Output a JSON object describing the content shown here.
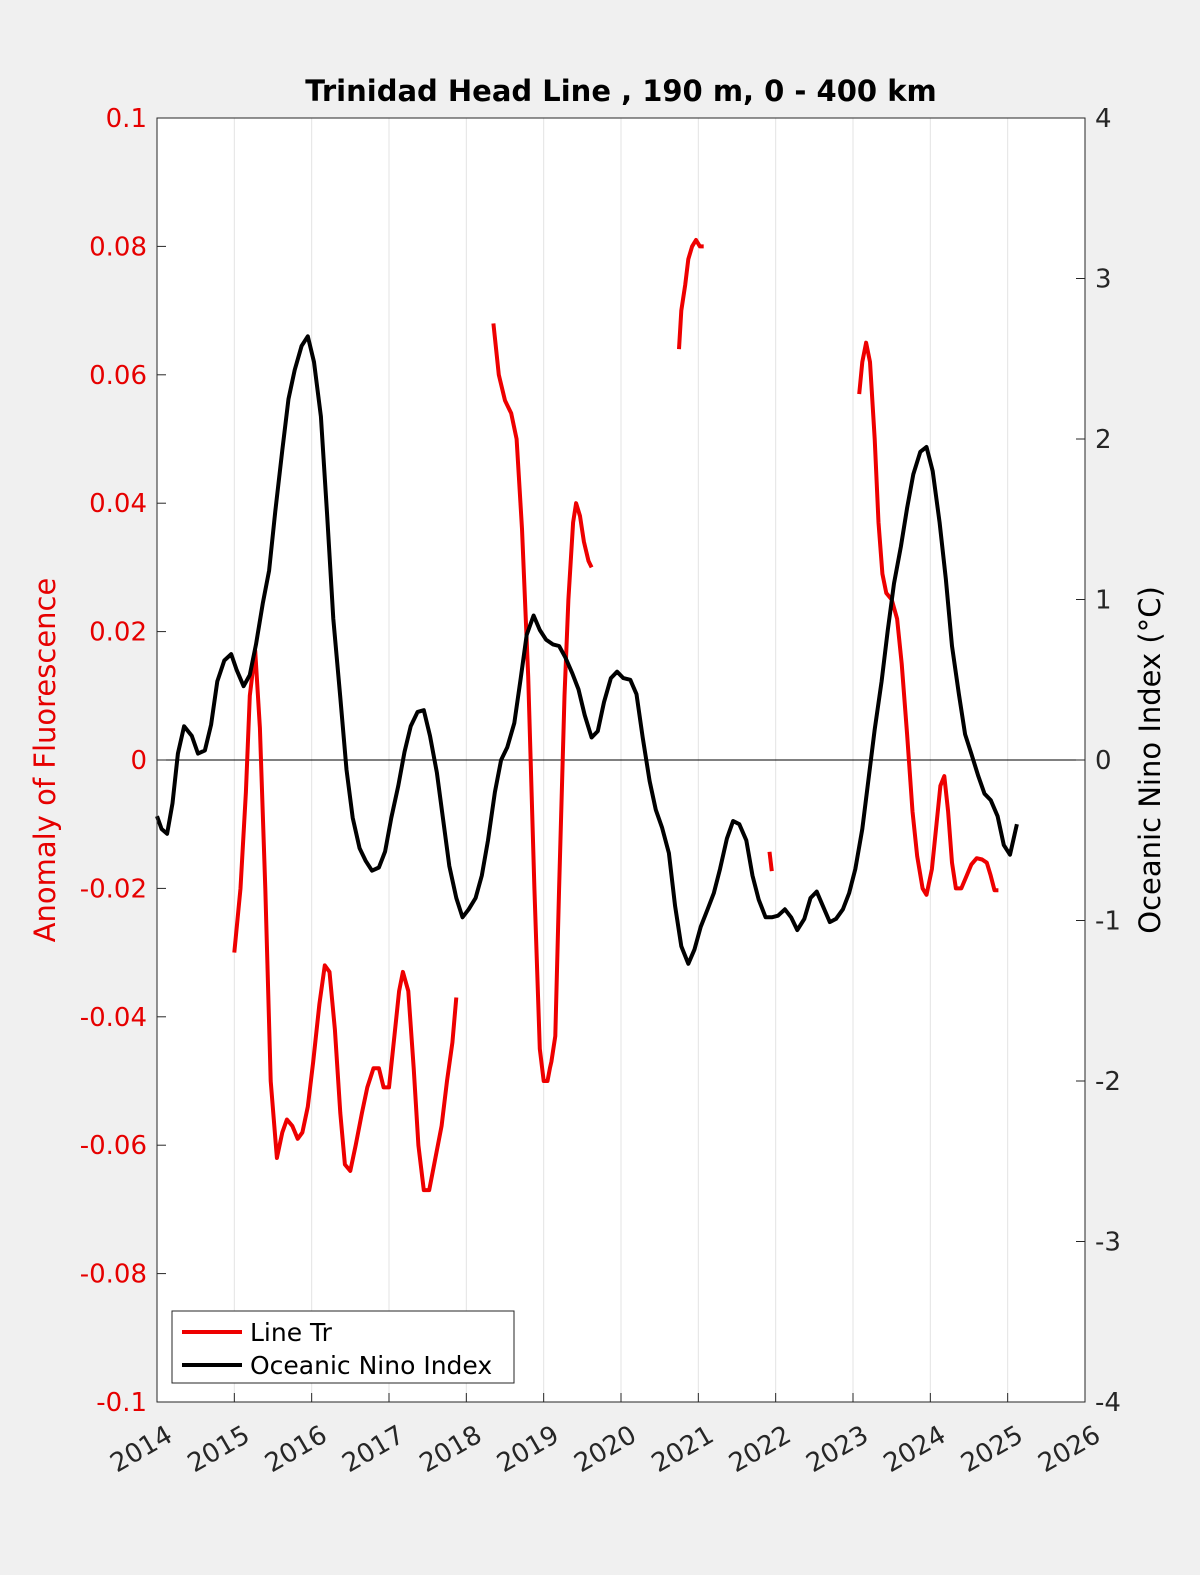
{
  "chart_data": {
    "type": "line",
    "title": "Trinidad Head Line , 190 m, 0 - 400 km",
    "xlabel": "",
    "ylabel_left": "Anomaly of Fluorescence",
    "ylabel_right": "Oceanic Nino Index (°C)",
    "xlim": [
      2014,
      2026
    ],
    "ylim_left": [
      -0.1,
      0.1
    ],
    "ylim_right": [
      -4,
      4
    ],
    "x_ticks": [
      "2014",
      "2015",
      "2016",
      "2017",
      "2018",
      "2019",
      "2020",
      "2021",
      "2022",
      "2023",
      "2024",
      "2025",
      "2026"
    ],
    "y_ticks_left": [
      "0.1",
      "0.08",
      "0.06",
      "0.04",
      "0.02",
      "0",
      "-0.02",
      "-0.04",
      "-0.06",
      "-0.08",
      "-0.1"
    ],
    "y_ticks_right": [
      "4",
      "3",
      "2",
      "1",
      "0",
      "-1",
      "-2",
      "-3",
      "-4"
    ],
    "grid": "vertical",
    "zero_line": true,
    "legend_position": "bottom-left",
    "colors": {
      "left_axis": "#e60000",
      "line_tr": "#ee0000",
      "oni": "#000000",
      "grid": "#e3e3e3",
      "background": "#f0f0f0"
    },
    "series": [
      {
        "name": "Line Tr",
        "axis": "left",
        "segments": [
          [
            [
              2015.0,
              -0.03
            ],
            [
              2015.08,
              -0.02
            ],
            [
              2015.15,
              -0.005
            ],
            [
              2015.2,
              0.01
            ],
            [
              2015.27,
              0.017
            ],
            [
              2015.33,
              0.005
            ],
            [
              2015.4,
              -0.02
            ],
            [
              2015.47,
              -0.05
            ],
            [
              2015.55,
              -0.062
            ],
            [
              2015.62,
              -0.058
            ],
            [
              2015.68,
              -0.056
            ],
            [
              2015.75,
              -0.057
            ],
            [
              2015.82,
              -0.059
            ],
            [
              2015.88,
              -0.058
            ],
            [
              2015.95,
              -0.054
            ],
            [
              2016.02,
              -0.047
            ],
            [
              2016.1,
              -0.038
            ],
            [
              2016.17,
              -0.032
            ],
            [
              2016.23,
              -0.033
            ],
            [
              2016.3,
              -0.042
            ],
            [
              2016.37,
              -0.055
            ],
            [
              2016.43,
              -0.063
            ],
            [
              2016.5,
              -0.064
            ],
            [
              2016.57,
              -0.06
            ],
            [
              2016.65,
              -0.055
            ],
            [
              2016.72,
              -0.051
            ],
            [
              2016.8,
              -0.048
            ],
            [
              2016.87,
              -0.048
            ],
            [
              2016.93,
              -0.051
            ],
            [
              2017.0,
              -0.051
            ],
            [
              2017.07,
              -0.043
            ],
            [
              2017.13,
              -0.036
            ],
            [
              2017.18,
              -0.033
            ],
            [
              2017.25,
              -0.036
            ],
            [
              2017.32,
              -0.048
            ],
            [
              2017.38,
              -0.06
            ],
            [
              2017.45,
              -0.067
            ],
            [
              2017.52,
              -0.067
            ],
            [
              2017.6,
              -0.062
            ],
            [
              2017.68,
              -0.057
            ],
            [
              2017.75,
              -0.05
            ],
            [
              2017.82,
              -0.044
            ],
            [
              2017.87,
              -0.037
            ]
          ],
          [
            [
              2018.35,
              0.068
            ],
            [
              2018.42,
              0.06
            ],
            [
              2018.5,
              0.056
            ],
            [
              2018.58,
              0.054
            ],
            [
              2018.65,
              0.05
            ],
            [
              2018.72,
              0.036
            ],
            [
              2018.8,
              0.013
            ],
            [
              2018.88,
              -0.02
            ],
            [
              2018.95,
              -0.045
            ],
            [
              2019.0,
              -0.05
            ],
            [
              2019.05,
              -0.05
            ],
            [
              2019.08,
              -0.048
            ],
            [
              2019.1,
              -0.047
            ],
            [
              2019.15,
              -0.043
            ],
            [
              2019.2,
              -0.02
            ],
            [
              2019.27,
              0.01
            ],
            [
              2019.32,
              0.025
            ],
            [
              2019.38,
              0.037
            ],
            [
              2019.42,
              0.04
            ],
            [
              2019.47,
              0.038
            ],
            [
              2019.52,
              0.034
            ],
            [
              2019.58,
              0.031
            ],
            [
              2019.62,
              0.03
            ]
          ],
          [
            [
              2020.75,
              0.064
            ],
            [
              2020.78,
              0.07
            ],
            [
              2020.83,
              0.074
            ],
            [
              2020.87,
              0.078
            ],
            [
              2020.92,
              0.08
            ],
            [
              2020.97,
              0.081
            ],
            [
              2021.02,
              0.08
            ],
            [
              2021.07,
              0.08
            ]
          ],
          [
            [
              2021.92,
              -0.0143
            ],
            [
              2021.95,
              -0.0173
            ]
          ],
          [
            [
              2023.08,
              0.057
            ],
            [
              2023.12,
              0.062
            ],
            [
              2023.17,
              0.065
            ],
            [
              2023.22,
              0.062
            ],
            [
              2023.28,
              0.05
            ],
            [
              2023.33,
              0.037
            ],
            [
              2023.38,
              0.029
            ],
            [
              2023.43,
              0.026
            ],
            [
              2023.5,
              0.025
            ],
            [
              2023.57,
              0.022
            ],
            [
              2023.63,
              0.015
            ],
            [
              2023.7,
              0.004
            ],
            [
              2023.77,
              -0.008
            ],
            [
              2023.83,
              -0.015
            ],
            [
              2023.9,
              -0.02
            ],
            [
              2023.95,
              -0.021
            ],
            [
              2024.02,
              -0.017
            ],
            [
              2024.08,
              -0.01
            ],
            [
              2024.13,
              -0.004
            ],
            [
              2024.18,
              -0.0025
            ],
            [
              2024.23,
              -0.008
            ],
            [
              2024.28,
              -0.016
            ],
            [
              2024.33,
              -0.02
            ],
            [
              2024.4,
              -0.02
            ],
            [
              2024.47,
              -0.018
            ],
            [
              2024.53,
              -0.0163
            ],
            [
              2024.6,
              -0.0153
            ],
            [
              2024.67,
              -0.0155
            ],
            [
              2024.73,
              -0.016
            ],
            [
              2024.78,
              -0.018
            ],
            [
              2024.83,
              -0.0203
            ],
            [
              2024.88,
              -0.0203
            ]
          ]
        ]
      },
      {
        "name": "Oceanic Nino Index",
        "axis": "right",
        "segments": [
          [
            [
              2014.0,
              -0.35
            ],
            [
              2014.06,
              -0.43
            ],
            [
              2014.13,
              -0.46
            ],
            [
              2014.2,
              -0.27
            ],
            [
              2014.27,
              0.04
            ],
            [
              2014.35,
              0.21
            ],
            [
              2014.45,
              0.15
            ],
            [
              2014.53,
              0.04
            ],
            [
              2014.62,
              0.06
            ],
            [
              2014.7,
              0.22
            ],
            [
              2014.78,
              0.49
            ],
            [
              2014.87,
              0.62
            ],
            [
              2014.96,
              0.66
            ],
            [
              2015.03,
              0.56
            ],
            [
              2015.12,
              0.46
            ],
            [
              2015.2,
              0.53
            ],
            [
              2015.28,
              0.72
            ],
            [
              2015.37,
              0.98
            ],
            [
              2015.45,
              1.18
            ],
            [
              2015.53,
              1.55
            ],
            [
              2015.62,
              1.93
            ],
            [
              2015.7,
              2.25
            ],
            [
              2015.78,
              2.43
            ],
            [
              2015.87,
              2.58
            ],
            [
              2015.95,
              2.64
            ],
            [
              2016.03,
              2.48
            ],
            [
              2016.12,
              2.14
            ],
            [
              2016.2,
              1.53
            ],
            [
              2016.28,
              0.88
            ],
            [
              2016.37,
              0.39
            ],
            [
              2016.45,
              -0.06
            ],
            [
              2016.53,
              -0.36
            ],
            [
              2016.62,
              -0.55
            ],
            [
              2016.7,
              -0.63
            ],
            [
              2016.78,
              -0.69
            ],
            [
              2016.87,
              -0.67
            ],
            [
              2016.95,
              -0.57
            ],
            [
              2017.03,
              -0.36
            ],
            [
              2017.12,
              -0.16
            ],
            [
              2017.2,
              0.05
            ],
            [
              2017.28,
              0.21
            ],
            [
              2017.37,
              0.3
            ],
            [
              2017.45,
              0.31
            ],
            [
              2017.53,
              0.15
            ],
            [
              2017.62,
              -0.08
            ],
            [
              2017.7,
              -0.37
            ],
            [
              2017.78,
              -0.66
            ],
            [
              2017.87,
              -0.86
            ],
            [
              2017.95,
              -0.98
            ],
            [
              2018.03,
              -0.93
            ],
            [
              2018.12,
              -0.86
            ],
            [
              2018.2,
              -0.72
            ],
            [
              2018.28,
              -0.5
            ],
            [
              2018.37,
              -0.2
            ],
            [
              2018.45,
              0.0
            ],
            [
              2018.53,
              0.08
            ],
            [
              2018.62,
              0.23
            ],
            [
              2018.7,
              0.5
            ],
            [
              2018.78,
              0.78
            ],
            [
              2018.87,
              0.9
            ],
            [
              2018.95,
              0.81
            ],
            [
              2019.03,
              0.75
            ],
            [
              2019.12,
              0.72
            ],
            [
              2019.2,
              0.71
            ],
            [
              2019.28,
              0.64
            ],
            [
              2019.37,
              0.54
            ],
            [
              2019.45,
              0.44
            ],
            [
              2019.53,
              0.28
            ],
            [
              2019.62,
              0.14
            ],
            [
              2019.7,
              0.18
            ],
            [
              2019.78,
              0.36
            ],
            [
              2019.87,
              0.51
            ],
            [
              2019.95,
              0.55
            ],
            [
              2020.03,
              0.51
            ],
            [
              2020.12,
              0.5
            ],
            [
              2020.2,
              0.41
            ],
            [
              2020.28,
              0.14
            ],
            [
              2020.37,
              -0.13
            ],
            [
              2020.45,
              -0.31
            ],
            [
              2020.53,
              -0.42
            ],
            [
              2020.62,
              -0.58
            ],
            [
              2020.7,
              -0.91
            ],
            [
              2020.78,
              -1.16
            ],
            [
              2020.87,
              -1.27
            ],
            [
              2020.95,
              -1.18
            ],
            [
              2021.03,
              -1.04
            ],
            [
              2021.12,
              -0.93
            ],
            [
              2021.2,
              -0.83
            ],
            [
              2021.28,
              -0.68
            ],
            [
              2021.37,
              -0.49
            ],
            [
              2021.45,
              -0.38
            ],
            [
              2021.53,
              -0.4
            ],
            [
              2021.62,
              -0.5
            ],
            [
              2021.7,
              -0.72
            ],
            [
              2021.78,
              -0.87
            ],
            [
              2021.87,
              -0.98
            ],
            [
              2021.95,
              -0.98
            ],
            [
              2022.03,
              -0.97
            ],
            [
              2022.12,
              -0.93
            ],
            [
              2022.2,
              -0.98
            ],
            [
              2022.28,
              -1.06
            ],
            [
              2022.37,
              -0.99
            ],
            [
              2022.45,
              -0.86
            ],
            [
              2022.53,
              -0.82
            ],
            [
              2022.62,
              -0.92
            ],
            [
              2022.7,
              -1.01
            ],
            [
              2022.78,
              -0.99
            ],
            [
              2022.87,
              -0.93
            ],
            [
              2022.95,
              -0.83
            ],
            [
              2023.03,
              -0.68
            ],
            [
              2023.12,
              -0.43
            ],
            [
              2023.2,
              -0.12
            ],
            [
              2023.28,
              0.19
            ],
            [
              2023.37,
              0.49
            ],
            [
              2023.45,
              0.81
            ],
            [
              2023.53,
              1.1
            ],
            [
              2023.62,
              1.33
            ],
            [
              2023.7,
              1.57
            ],
            [
              2023.78,
              1.78
            ],
            [
              2023.87,
              1.92
            ],
            [
              2023.95,
              1.95
            ],
            [
              2024.03,
              1.8
            ],
            [
              2024.12,
              1.48
            ],
            [
              2024.2,
              1.13
            ],
            [
              2024.28,
              0.71
            ],
            [
              2024.37,
              0.41
            ],
            [
              2024.45,
              0.16
            ],
            [
              2024.53,
              0.04
            ],
            [
              2024.62,
              -0.1
            ],
            [
              2024.7,
              -0.21
            ],
            [
              2024.78,
              -0.25
            ],
            [
              2024.87,
              -0.35
            ],
            [
              2024.95,
              -0.53
            ],
            [
              2025.03,
              -0.59
            ],
            [
              2025.12,
              -0.4
            ]
          ]
        ]
      }
    ]
  }
}
